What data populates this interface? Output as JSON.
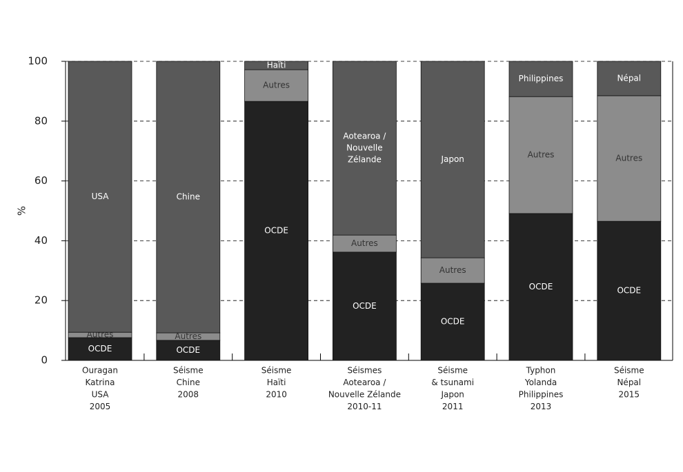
{
  "chart_data": {
    "type": "stacked_bar",
    "y_label": "%",
    "categories": [
      [
        "Ouragan",
        "Katrina",
        "USA",
        "2005"
      ],
      [
        "Séisme",
        "Chine",
        "2008"
      ],
      [
        "Séisme",
        "Haïti",
        "2010"
      ],
      [
        "Séismes",
        "Aotearoa /",
        "Nouvelle Zélande",
        "2010-11"
      ],
      [
        "Séisme",
        "& tsunami",
        "Japon",
        "2011"
      ],
      [
        "Typhon",
        "Yolanda",
        "Philippines",
        "2013"
      ],
      [
        "Séisme",
        "Népal",
        "2015"
      ]
    ],
    "series": [
      {
        "color": "#222222",
        "text_color": "#ffffff",
        "values": [
          7.6,
          6.7,
          86.6,
          36.2,
          25.8,
          49.1,
          46.5
        ],
        "labels": [
          "OCDE",
          "OCDE",
          "OCDE",
          "OCDE",
          "OCDE",
          "OCDE",
          "OCDE"
        ]
      },
      {
        "color": "#8c8c8c",
        "text_color": "#333333",
        "values": [
          1.8,
          2.5,
          10.6,
          5.7,
          8.5,
          39.1,
          42.0
        ],
        "labels": [
          "Autres",
          "Autres",
          "Autres",
          "Autres",
          "Autres",
          "Autres",
          "Autres"
        ]
      },
      {
        "color": "#595959",
        "text_color": "#ffffff",
        "values": [
          90.6,
          90.8,
          2.8,
          58.1,
          65.7,
          11.8,
          11.5
        ],
        "labels": [
          "USA",
          "Chine",
          "Haïti",
          [
            "Aotearoa /",
            "Nouvelle",
            "Zélande"
          ],
          "Japon",
          "Philippines",
          "Népal"
        ]
      }
    ],
    "ylim": [
      0,
      100
    ],
    "yticks": [
      0,
      20,
      40,
      60,
      80,
      100
    ],
    "grid": true
  }
}
